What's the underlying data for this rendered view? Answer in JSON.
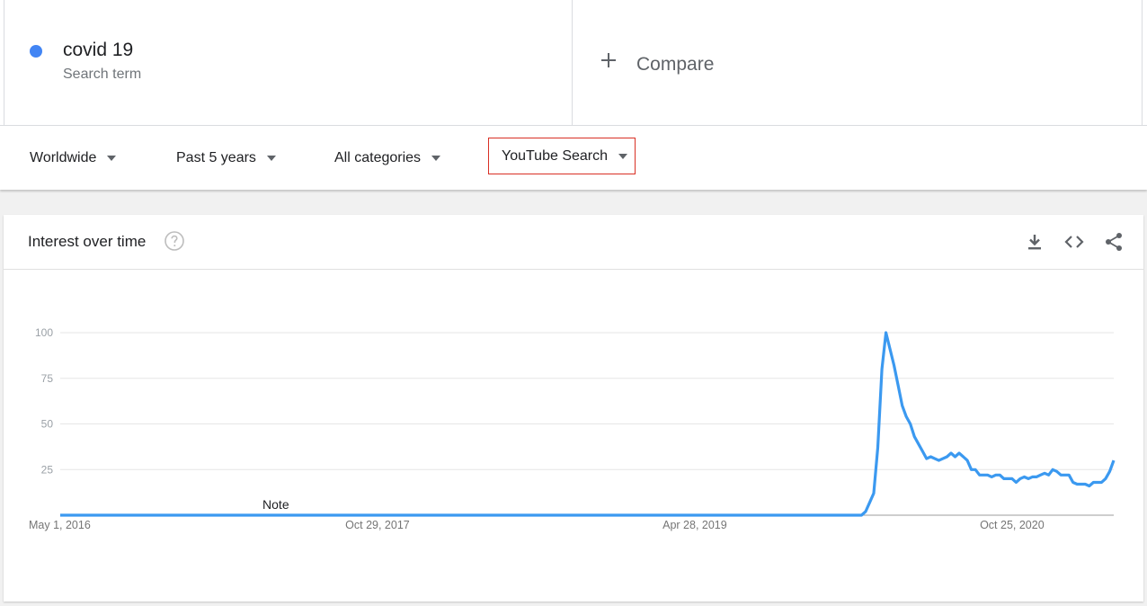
{
  "search_term": {
    "name": "covid 19",
    "subtitle": "Search term",
    "color": "#4285f4"
  },
  "compare": {
    "label": "Compare",
    "icon": "plus-icon"
  },
  "filters": [
    {
      "label": "Worldwide",
      "highlighted": false
    },
    {
      "label": "Past 5 years",
      "highlighted": false
    },
    {
      "label": "All categories",
      "highlighted": false
    },
    {
      "label": "YouTube Search",
      "highlighted": true
    }
  ],
  "highlight_color": "#d93025",
  "card": {
    "title": "Interest over time",
    "icons": [
      "help-icon",
      "download-icon",
      "embed-code-icon",
      "share-icon"
    ]
  },
  "chart_data": {
    "type": "line",
    "series": [
      {
        "name": "covid 19",
        "color": "#3b99f0",
        "points": [
          [
            "2016-05-01",
            0
          ],
          [
            "2017-05-01",
            0
          ],
          [
            "2018-05-01",
            0
          ],
          [
            "2019-05-01",
            0
          ],
          [
            "2019-12-29",
            0
          ],
          [
            "2020-01-05",
            0
          ],
          [
            "2020-01-12",
            0
          ],
          [
            "2020-01-19",
            0
          ],
          [
            "2020-01-26",
            0
          ],
          [
            "2020-02-02",
            0
          ],
          [
            "2020-02-09",
            0
          ],
          [
            "2020-02-16",
            2
          ],
          [
            "2020-02-23",
            7
          ],
          [
            "2020-03-01",
            12
          ],
          [
            "2020-03-08",
            37
          ],
          [
            "2020-03-15",
            80
          ],
          [
            "2020-03-22",
            100
          ],
          [
            "2020-03-29",
            91
          ],
          [
            "2020-04-05",
            82
          ],
          [
            "2020-04-12",
            71
          ],
          [
            "2020-04-19",
            60
          ],
          [
            "2020-04-26",
            54
          ],
          [
            "2020-05-03",
            50
          ],
          [
            "2020-05-10",
            43
          ],
          [
            "2020-05-17",
            39
          ],
          [
            "2020-05-24",
            35
          ],
          [
            "2020-05-31",
            31
          ],
          [
            "2020-06-07",
            32
          ],
          [
            "2020-06-14",
            31
          ],
          [
            "2020-06-21",
            30
          ],
          [
            "2020-06-28",
            31
          ],
          [
            "2020-07-05",
            32
          ],
          [
            "2020-07-12",
            34
          ],
          [
            "2020-07-19",
            32
          ],
          [
            "2020-07-26",
            34
          ],
          [
            "2020-08-02",
            32
          ],
          [
            "2020-08-09",
            30
          ],
          [
            "2020-08-16",
            25
          ],
          [
            "2020-08-23",
            25
          ],
          [
            "2020-08-30",
            22
          ],
          [
            "2020-09-06",
            22
          ],
          [
            "2020-09-13",
            22
          ],
          [
            "2020-09-20",
            21
          ],
          [
            "2020-09-27",
            22
          ],
          [
            "2020-10-04",
            22
          ],
          [
            "2020-10-11",
            20
          ],
          [
            "2020-10-18",
            20
          ],
          [
            "2020-10-25",
            20
          ],
          [
            "2020-11-01",
            18
          ],
          [
            "2020-11-08",
            20
          ],
          [
            "2020-11-15",
            21
          ],
          [
            "2020-11-22",
            20
          ],
          [
            "2020-11-29",
            21
          ],
          [
            "2020-12-06",
            21
          ],
          [
            "2020-12-13",
            22
          ],
          [
            "2020-12-20",
            23
          ],
          [
            "2020-12-27",
            22
          ],
          [
            "2021-01-03",
            25
          ],
          [
            "2021-01-10",
            24
          ],
          [
            "2021-01-17",
            22
          ],
          [
            "2021-01-24",
            22
          ],
          [
            "2021-01-31",
            22
          ],
          [
            "2021-02-07",
            18
          ],
          [
            "2021-02-14",
            17
          ],
          [
            "2021-02-21",
            17
          ],
          [
            "2021-02-28",
            17
          ],
          [
            "2021-03-07",
            16
          ],
          [
            "2021-03-14",
            18
          ],
          [
            "2021-03-21",
            18
          ],
          [
            "2021-03-28",
            18
          ],
          [
            "2021-04-04",
            20
          ],
          [
            "2021-04-11",
            24
          ],
          [
            "2021-04-18",
            30
          ]
        ]
      }
    ],
    "y_ticks": [
      25,
      50,
      75,
      100
    ],
    "ylim": [
      0,
      100
    ],
    "x_ticks": [
      {
        "date": "2016-05-01",
        "label": "May 1, 2016"
      },
      {
        "date": "2017-10-29",
        "label": "Oct 29, 2017"
      },
      {
        "date": "2019-04-28",
        "label": "Apr 28, 2019"
      },
      {
        "date": "2020-10-25",
        "label": "Oct 25, 2020"
      }
    ],
    "xlim": [
      "2016-05-01",
      "2021-04-18"
    ],
    "annotations": [
      {
        "date": "2017-05-07",
        "text": "Note"
      }
    ],
    "grid": true,
    "legend": "none"
  }
}
